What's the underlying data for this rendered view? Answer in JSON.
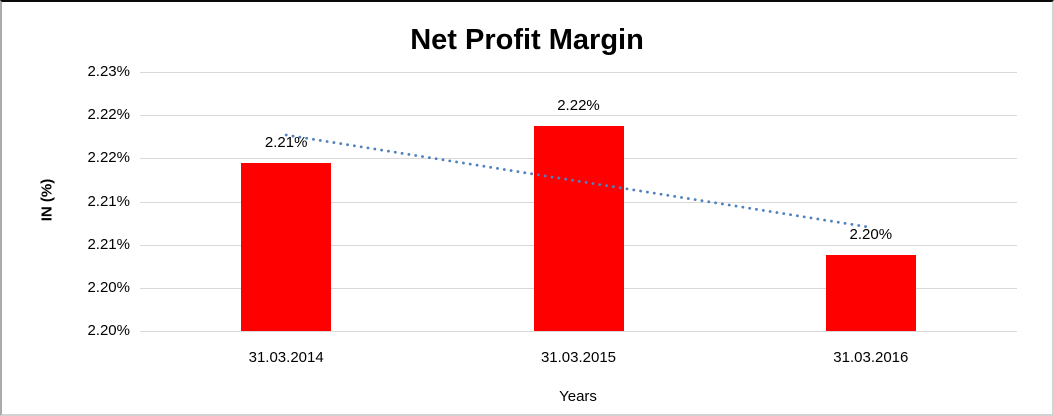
{
  "chart_data": {
    "type": "bar",
    "title": "Net Profit Margin",
    "xlabel": "Years",
    "ylabel": "IN (%)",
    "categories": [
      "31.03.2014",
      "31.03.2015",
      "31.03.2016"
    ],
    "values": [
      2.2145,
      2.2188,
      2.2038
    ],
    "data_labels": [
      "2.21%",
      "2.22%",
      "2.20%"
    ],
    "ylim": [
      2.195,
      2.225
    ],
    "y_major_unit": 0.005,
    "y_tick_labels_top_to_bottom": [
      "2.23%",
      "2.22%",
      "2.22%",
      "2.21%",
      "2.21%",
      "2.20%",
      "2.20%"
    ],
    "grid": true,
    "legend": "none",
    "trendline": {
      "type": "linear",
      "style": "dotted",
      "start_value": 2.2177,
      "end_value": 2.207
    },
    "colors": {
      "bar_fill": "#FF0000",
      "trendline": "#4F81BD",
      "gridline": "#D9D9D9",
      "text": "#000000"
    }
  }
}
